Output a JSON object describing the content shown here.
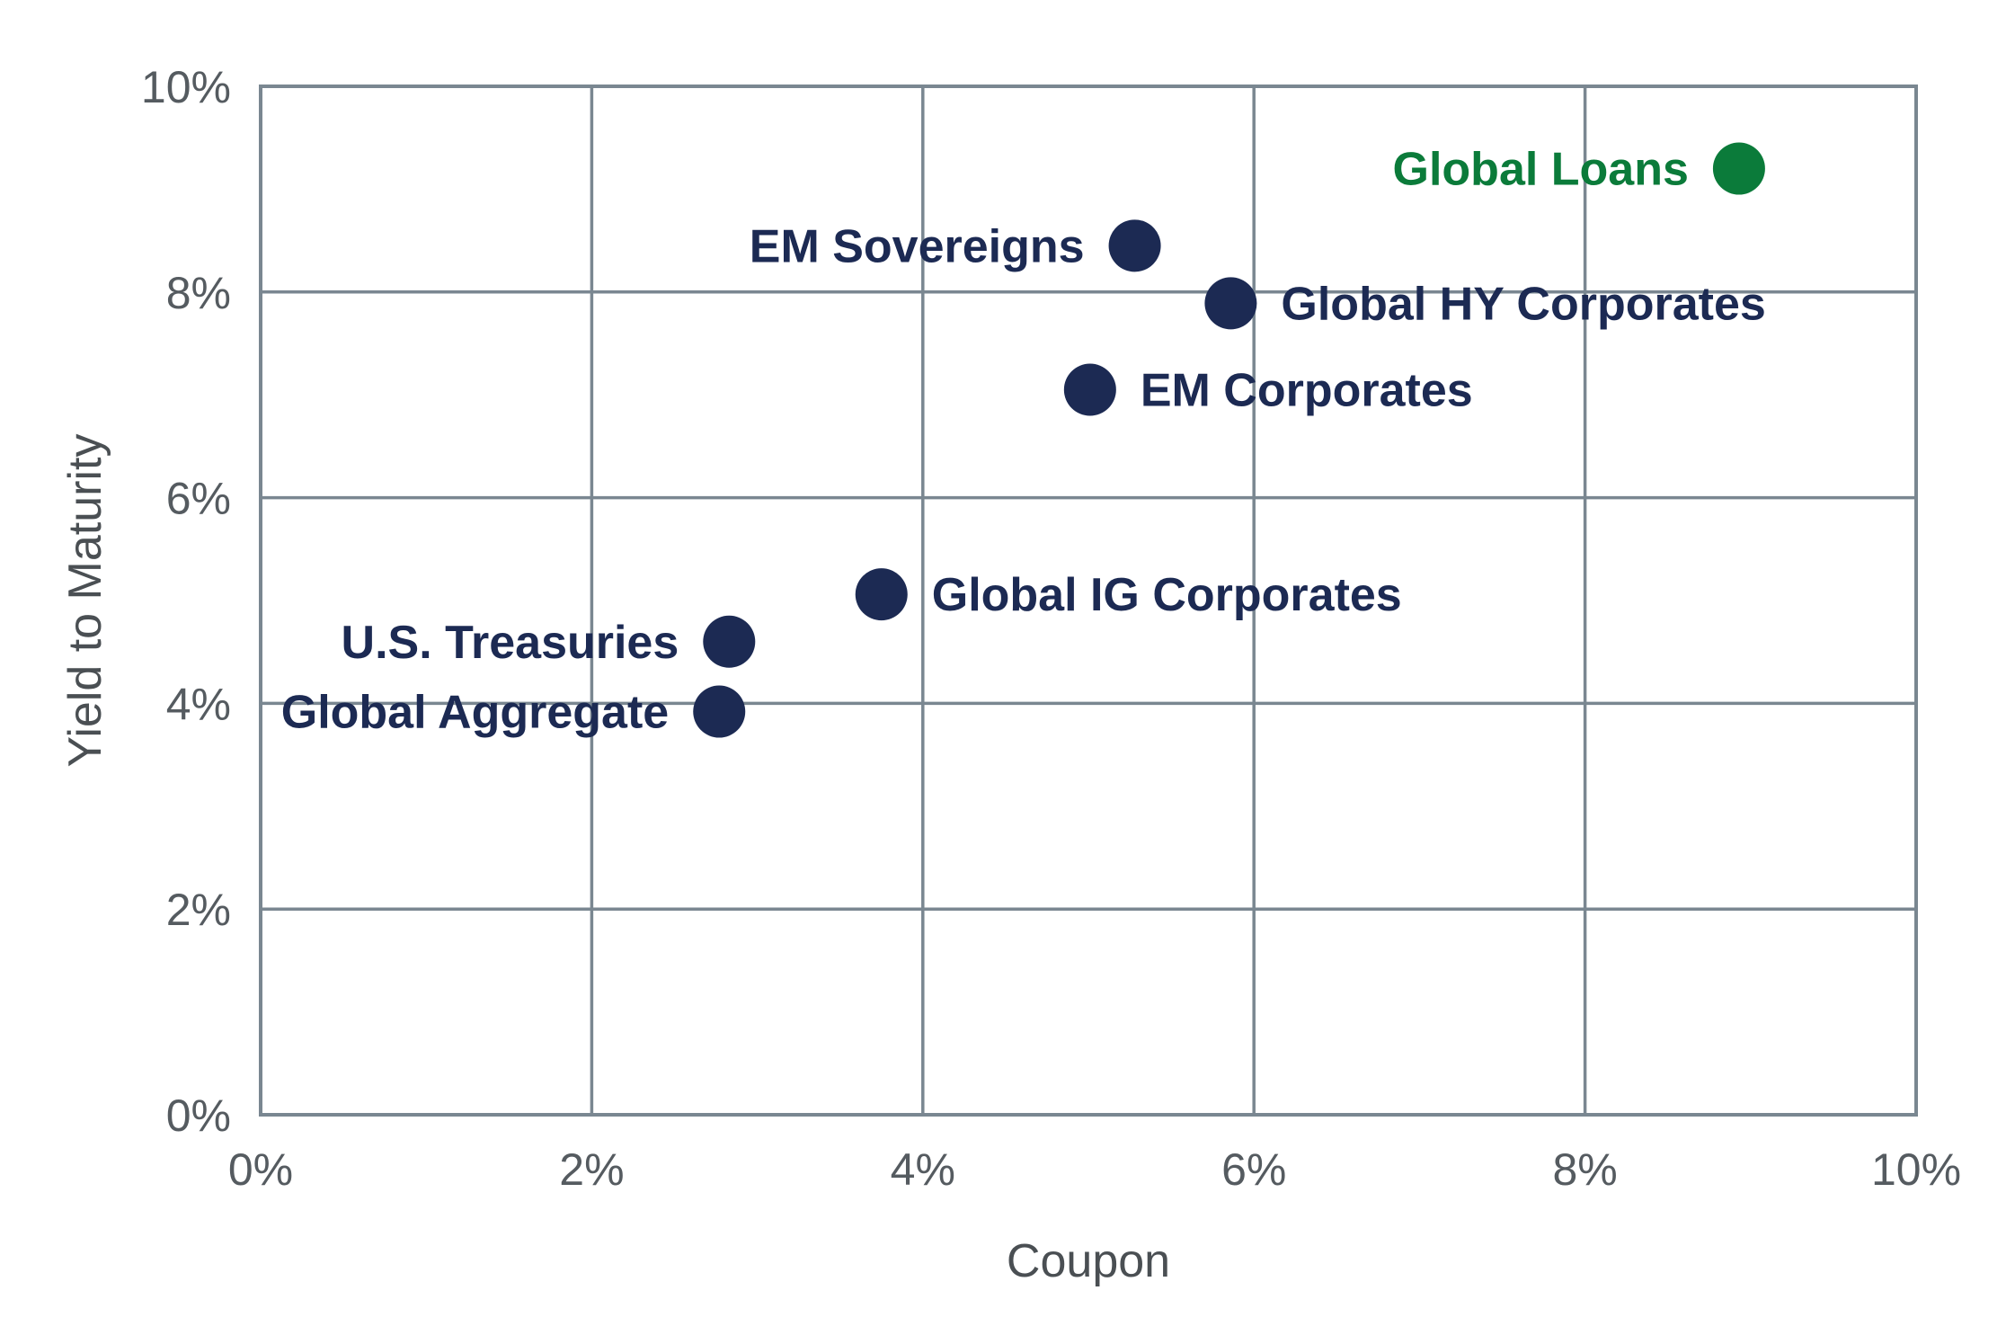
{
  "chart_data": {
    "type": "scatter",
    "xlabel": "Coupon",
    "ylabel": "Yield to Maturity",
    "xlim": [
      0,
      10
    ],
    "ylim": [
      0,
      10
    ],
    "x_ticks": [
      "0%",
      "2%",
      "4%",
      "6%",
      "8%",
      "10%"
    ],
    "y_ticks": [
      "0%",
      "2%",
      "4%",
      "6%",
      "8%",
      "10%"
    ],
    "grid": true,
    "colors": {
      "default": "#1c2a53",
      "highlight": "#0b7b3a"
    },
    "points": [
      {
        "label": "Global Loans",
        "x": 8.93,
        "y": 9.2,
        "color": "#0b7b3a",
        "label_side": "left"
      },
      {
        "label": "EM Sovereigns",
        "x": 5.28,
        "y": 8.45,
        "color": "#1c2a53",
        "label_side": "left"
      },
      {
        "label": "Global HY Corporates",
        "x": 5.86,
        "y": 7.89,
        "color": "#1c2a53",
        "label_side": "right"
      },
      {
        "label": "EM Corporates",
        "x": 5.01,
        "y": 7.05,
        "color": "#1c2a53",
        "label_side": "right"
      },
      {
        "label": "Global IG Corporates",
        "x": 3.75,
        "y": 5.06,
        "color": "#1c2a53",
        "label_side": "right"
      },
      {
        "label": "U.S. Treasuries",
        "x": 2.83,
        "y": 4.6,
        "color": "#1c2a53",
        "label_side": "left"
      },
      {
        "label": "Global Aggregate",
        "x": 2.77,
        "y": 3.92,
        "color": "#1c2a53",
        "label_side": "left"
      }
    ]
  }
}
